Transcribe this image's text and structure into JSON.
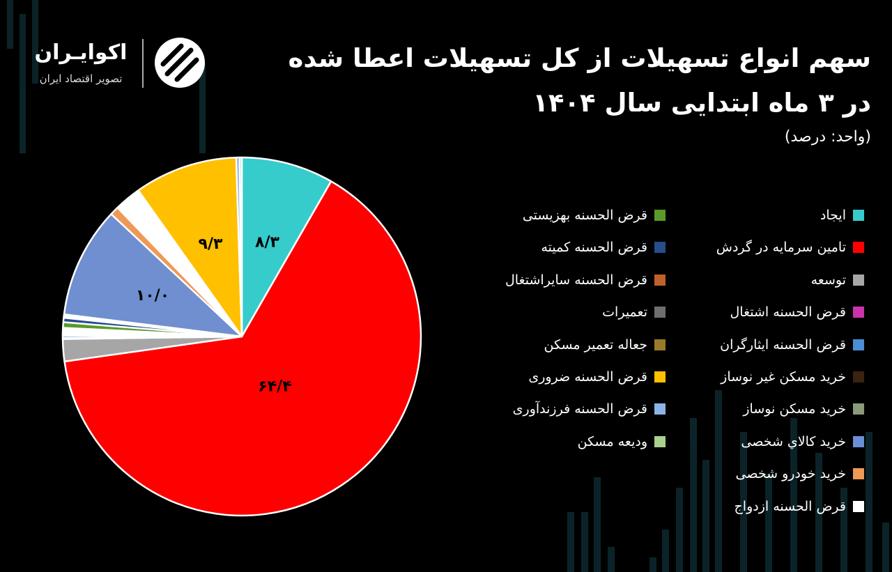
{
  "title_line1": "سهم انواع تسهیلات از کل تسهیلات اعطا شده",
  "title_line2": "در ۳ ماه ابتدایی سال ۱۴۰۴",
  "unit": "(واحد: درصد)",
  "logo": {
    "name": "اکوایـران",
    "tagline": "تصویر اقتصاد ایران"
  },
  "chart_data": {
    "type": "pie",
    "title": "سهم انواع تسهیلات از کل تسهیلات اعطا شده در ۳ ماه ابتدایی سال ۱۴۰۴",
    "unit": "درصد",
    "start_angle_deg": 0,
    "direction": "clockwise",
    "slices": [
      {
        "label": "ایجاد",
        "value": 8.3,
        "color": "#36cccc",
        "data_label": "۸/۳"
      },
      {
        "label": "تامین سرمایه در گردش",
        "value": 64.4,
        "color": "#ff0000",
        "data_label": "۶۴/۴"
      },
      {
        "label": "توسعه",
        "value": 2.0,
        "color": "#a6a6a6"
      },
      {
        "label": "قرض الحسنه اشتغال",
        "value": 0.1,
        "color": "#cc33aa"
      },
      {
        "label": "قرض الحسنه ایثارگران",
        "value": 0.2,
        "color": "#4a8fd4"
      },
      {
        "label": "خرید مسکن غیر نوساز",
        "value": 0.1,
        "color": "#3a2410"
      },
      {
        "label": "خرید مسکن نوساز",
        "value": 0.1,
        "color": "#8a9a7a"
      },
      {
        "label": "خرید کالاي شخصی",
        "value": 0.1,
        "color": "#6b8fd6"
      },
      {
        "label": "خرید خودرو شخصی",
        "value": 0.1,
        "color": "#ee9955"
      },
      {
        "label": "قرض الحسنه ازدواج",
        "value": 0.3,
        "color": "#ffffff"
      },
      {
        "label": "قرض الحسنه بهزیستی",
        "value": 0.5,
        "color": "#5a9a2a"
      },
      {
        "label": "قرض الحسنه کمیته",
        "value": 0.4,
        "color": "#264d8c"
      },
      {
        "label": "قرض الحسنه سایراشتغال",
        "value": 0.1,
        "color": "#c0602a"
      },
      {
        "label": "تعمیرات",
        "value": 0.1,
        "color": "#6e6e6e"
      },
      {
        "label": "جعاله تعمیر مسکن",
        "value": 0.1,
        "color": "#9a7a2a"
      },
      {
        "label": "خرید کالاي شخصی",
        "value": 10.0,
        "color": "#6f8fd0",
        "data_label": "۱۰/۰",
        "legend": false
      },
      {
        "label": "خرید خودرو شخصی",
        "value": 0.8,
        "color": "#ee9955",
        "legend": false
      },
      {
        "label": "قرض الحسنه ازدواج",
        "value": 2.4,
        "color": "#ffffff",
        "legend": false
      },
      {
        "label": "قرض الحسنه ضروری",
        "value": 9.3,
        "color": "#ffc000",
        "data_label": "۹/۳"
      },
      {
        "label": "قرض الحسنه فرزندآوری",
        "value": 0.3,
        "color": "#8ab4e6"
      },
      {
        "label": "ودیعه مسکن",
        "value": 0.2,
        "color": "#a9d08e"
      }
    ],
    "legend": {
      "placement": "right",
      "columns": [
        [
          {
            "label": "ایجاد",
            "color": "#36cccc"
          },
          {
            "label": "تامین سرمایه در گردش",
            "color": "#ff0000"
          },
          {
            "label": "توسعه",
            "color": "#a6a6a6"
          },
          {
            "label": "قرض الحسنه اشتغال",
            "color": "#cc33aa"
          },
          {
            "label": "قرض الحسنه ایثارگران",
            "color": "#4a8fd4"
          },
          {
            "label": "خرید مسکن غیر نوساز",
            "color": "#3a2410"
          },
          {
            "label": "خرید مسکن نوساز",
            "color": "#8a9a7a"
          },
          {
            "label": "خرید کالاي شخصی",
            "color": "#6b8fd6"
          },
          {
            "label": "خرید خودرو شخصی",
            "color": "#ee9955"
          },
          {
            "label": "قرض الحسنه ازدواج",
            "color": "#ffffff"
          }
        ],
        [
          {
            "label": "قرض الحسنه بهزیستی",
            "color": "#5a9a2a"
          },
          {
            "label": "قرض الحسنه کمیته",
            "color": "#264d8c"
          },
          {
            "label": "قرض الحسنه سایراشتغال",
            "color": "#c0602a"
          },
          {
            "label": "تعمیرات",
            "color": "#6e6e6e"
          },
          {
            "label": "جعاله تعمیر مسکن",
            "color": "#9a7a2a"
          },
          {
            "label": "قرض الحسنه ضروری",
            "color": "#ffc000"
          },
          {
            "label": "قرض الحسنه فرزندآوری",
            "color": "#8ab4e6"
          },
          {
            "label": "ودیعه مسکن",
            "color": "#a9d08e"
          }
        ]
      ]
    }
  }
}
